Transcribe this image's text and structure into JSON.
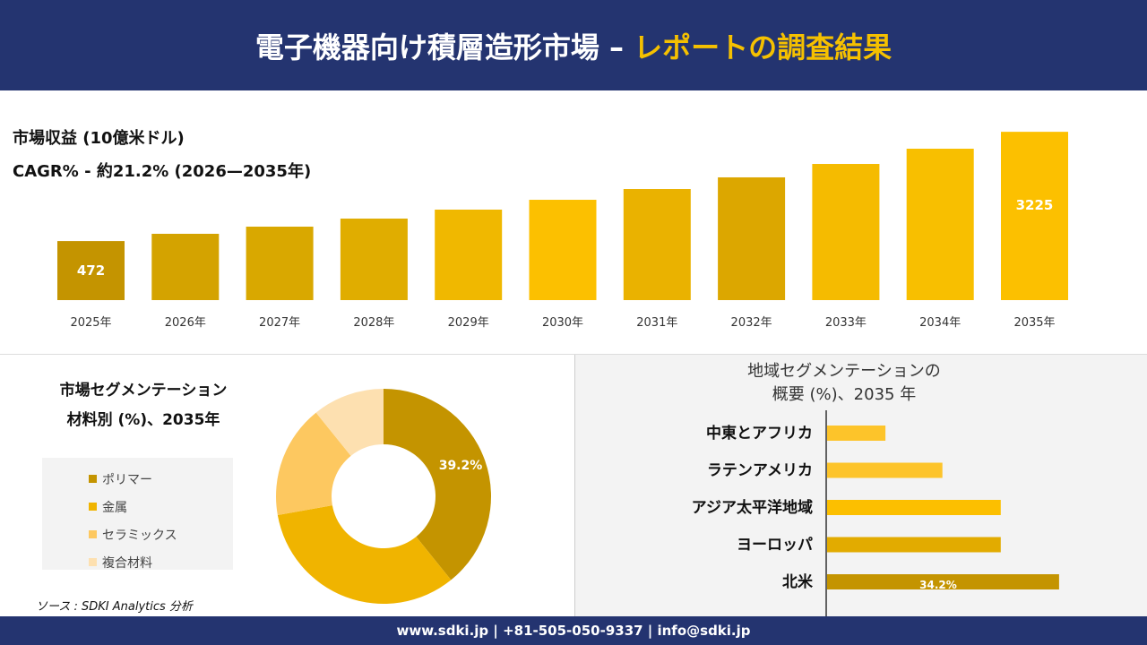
{
  "header": {
    "title_main": "電子機器向け積層造形市場 –",
    "title_accent": "レポートの調査結果"
  },
  "revenue": {
    "label": "市場収益 (10億米ドル)",
    "cagr": "CAGR% - 約21.2% (2026—2035年)"
  },
  "chart_data": [
    {
      "type": "bar",
      "categories": [
        "2025年",
        "2026年",
        "2027年",
        "2028年",
        "2029年",
        "2030年",
        "2031年",
        "2032年",
        "2033年",
        "2034年",
        "2035年"
      ],
      "values": [
        472,
        655,
        835,
        1038,
        1264,
        1512,
        1783,
        2077,
        2415,
        2799,
        3225
      ],
      "data_labels": {
        "0": "472",
        "10": "3225"
      },
      "colors": [
        "#c49400",
        "#d4a300",
        "#d9a800",
        "#e0ad00",
        "#f0b800",
        "#fcc000",
        "#eab200",
        "#dca700",
        "#f5bb00",
        "#f8bf00",
        "#fcc000"
      ]
    },
    {
      "type": "pie",
      "title": "市場セグメンテーション 材料別 (%)、2035年",
      "title_lines": [
        "市場セグメンテーション",
        "材料別 (%)、2035年"
      ],
      "categories": [
        "ポリマー",
        "金属",
        "セラミックス",
        "複合材料"
      ],
      "values": [
        39.2,
        33.0,
        17.0,
        10.8
      ],
      "data_labels": {
        "0": "39.2%"
      },
      "colors": [
        "#c49400",
        "#f0b400",
        "#fdc860",
        "#fde0b0"
      ],
      "legend": "left",
      "donut": true
    },
    {
      "type": "bar",
      "orientation": "horizontal",
      "title_lines": [
        "地域セグメンテーションの",
        "概要 (%)、2035 年"
      ],
      "categories": [
        "中東とアフリカ",
        "ラテンアメリカ",
        "アジア太平洋地域",
        "ヨーロッパ",
        "北米"
      ],
      "values": [
        8.6,
        17.0,
        25.6,
        25.6,
        34.2
      ],
      "data_labels": {
        "4": "34.2%"
      },
      "colors": [
        "#fdc42a",
        "#fdc42a",
        "#fcbf00",
        "#e2ab00",
        "#c49400"
      ]
    }
  ],
  "source": "ソース : SDKI Analytics 分析",
  "footer": "www.sdki.jp | +81-505-050-9337 | info@sdki.jp"
}
